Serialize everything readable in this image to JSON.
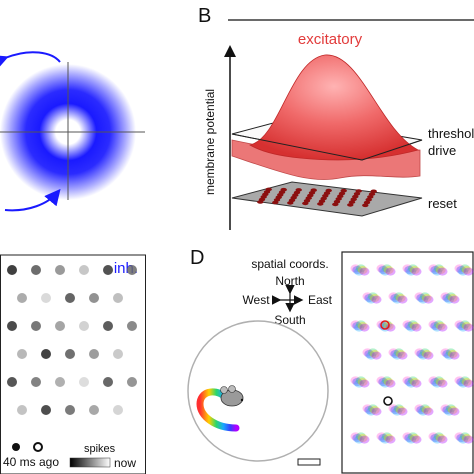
{
  "panel_b": {
    "letter": "B",
    "title": "excitatory",
    "y_axis_label": "membrane potential",
    "labels": {
      "threshold": "threshold",
      "drive": "drive",
      "reset": "reset"
    }
  },
  "panel_c": {
    "title": "inh.",
    "scale_label": "40 ms ago",
    "spikes_label": "spikes",
    "now_label": "now"
  },
  "panel_d": {
    "letter": "D",
    "compass": {
      "title": "spatial coords.",
      "north": "North",
      "south": "South",
      "west": "West",
      "east": "East"
    }
  },
  "colors": {
    "blue_ring": "#1a1aff",
    "excitatory_red": "#e23b3b",
    "reset_dots": "#8b0f0f",
    "plane_gray": "#a9a9a9",
    "trajectory": [
      "#ff3030",
      "#ffd000",
      "#2bd66b",
      "#1aa7ff",
      "#3a3aff",
      "#b000ff"
    ]
  }
}
